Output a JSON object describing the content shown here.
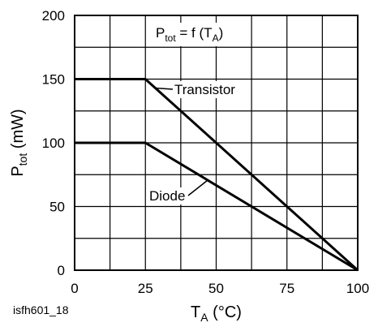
{
  "chart_data": {
    "type": "line",
    "x_range": [
      0,
      100
    ],
    "y_range": [
      0,
      200
    ],
    "x_ticks": [
      0,
      25,
      50,
      75,
      100
    ],
    "y_ticks": [
      0,
      50,
      100,
      150,
      200
    ],
    "x_minor_step": 12.5,
    "y_minor_step": 25,
    "grid": true,
    "xlabel": {
      "main": "T",
      "sub": "A",
      "unit": " (°C)"
    },
    "ylabel": {
      "main": "P",
      "sub": "tot",
      "unit": " (mW)"
    },
    "formula": {
      "p": "P",
      "tot": "tot",
      "eq": " = f (T",
      "a": "A",
      "close": ")"
    },
    "series": [
      {
        "name": "Transistor",
        "x": [
          0,
          25,
          100
        ],
        "y": [
          150,
          150,
          0
        ]
      },
      {
        "name": "Diode",
        "x": [
          0,
          25,
          100
        ],
        "y": [
          100,
          100,
          0
        ]
      }
    ]
  },
  "footer_id": "isfh601_18"
}
